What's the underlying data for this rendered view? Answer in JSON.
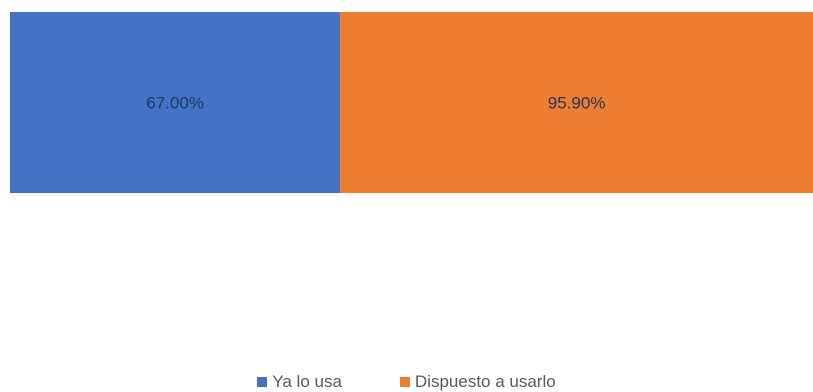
{
  "chart_data": {
    "type": "bar",
    "orientation": "horizontal-stacked",
    "categories": [
      ""
    ],
    "series": [
      {
        "name": "Ya lo usa",
        "values": [
          67.0
        ],
        "label": "67.00%",
        "color": "#4472C4"
      },
      {
        "name": "Dispuesto a usarlo",
        "values": [
          95.9
        ],
        "label": "95.90%",
        "color": "#ED7D31"
      }
    ],
    "title": "",
    "xlabel": "",
    "ylabel": "",
    "legend_position": "bottom",
    "grid": false,
    "label_color": "#1F3864"
  }
}
